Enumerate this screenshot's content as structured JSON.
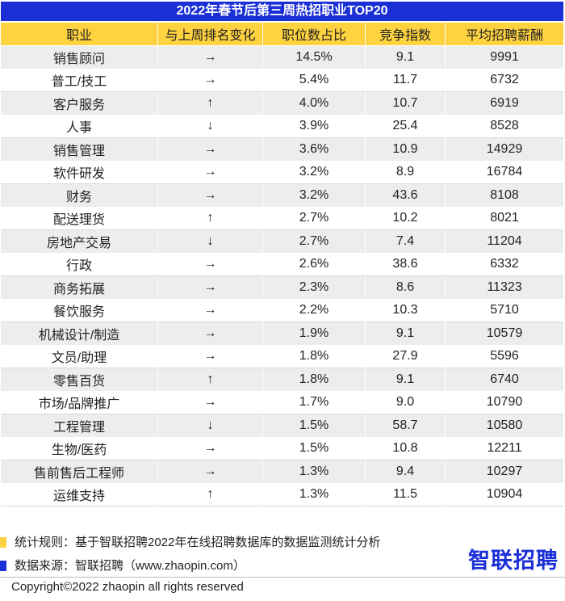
{
  "title": "2022年春节后第三周热招职业TOP20",
  "columns": [
    "职业",
    "与上周排名变化",
    "职位数占比",
    "竞争指数",
    "平均招聘薪酬"
  ],
  "rows": [
    {
      "job": "销售顾问",
      "change": "→",
      "share": "14.5%",
      "competition": "9.1",
      "salary": "9991"
    },
    {
      "job": "普工/技工",
      "change": "→",
      "share": "5.4%",
      "competition": "11.7",
      "salary": "6732"
    },
    {
      "job": "客户服务",
      "change": "↑",
      "share": "4.0%",
      "competition": "10.7",
      "salary": "6919"
    },
    {
      "job": "人事",
      "change": "↓",
      "share": "3.9%",
      "competition": "25.4",
      "salary": "8528"
    },
    {
      "job": "销售管理",
      "change": "→",
      "share": "3.6%",
      "competition": "10.9",
      "salary": "14929"
    },
    {
      "job": "软件研发",
      "change": "→",
      "share": "3.2%",
      "competition": "8.9",
      "salary": "16784"
    },
    {
      "job": "财务",
      "change": "→",
      "share": "3.2%",
      "competition": "43.6",
      "salary": "8108"
    },
    {
      "job": "配送理货",
      "change": "↑",
      "share": "2.7%",
      "competition": "10.2",
      "salary": "8021"
    },
    {
      "job": "房地产交易",
      "change": "↓",
      "share": "2.7%",
      "competition": "7.4",
      "salary": "11204"
    },
    {
      "job": "行政",
      "change": "→",
      "share": "2.6%",
      "competition": "38.6",
      "salary": "6332"
    },
    {
      "job": "商务拓展",
      "change": "→",
      "share": "2.3%",
      "competition": "8.6",
      "salary": "11323"
    },
    {
      "job": "餐饮服务",
      "change": "→",
      "share": "2.2%",
      "competition": "10.3",
      "salary": "5710"
    },
    {
      "job": "机械设计/制造",
      "change": "→",
      "share": "1.9%",
      "competition": "9.1",
      "salary": "10579"
    },
    {
      "job": "文员/助理",
      "change": "→",
      "share": "1.8%",
      "competition": "27.9",
      "salary": "5596"
    },
    {
      "job": "零售百货",
      "change": "↑",
      "share": "1.8%",
      "competition": "9.1",
      "salary": "6740"
    },
    {
      "job": "市场/品牌推广",
      "change": "→",
      "share": "1.7%",
      "competition": "9.0",
      "salary": "10790"
    },
    {
      "job": "工程管理",
      "change": "↓",
      "share": "1.5%",
      "competition": "58.7",
      "salary": "10580"
    },
    {
      "job": "生物/医药",
      "change": "→",
      "share": "1.5%",
      "competition": "10.8",
      "salary": "12211"
    },
    {
      "job": "售前售后工程师",
      "change": "→",
      "share": "1.3%",
      "competition": "9.4",
      "salary": "10297"
    },
    {
      "job": "运维支持",
      "change": "↑",
      "share": "1.3%",
      "competition": "11.5",
      "salary": "10904",
      "highlight": true
    }
  ],
  "legend": {
    "rule_label": "统计规则：基于智联招聘2022年在线招聘数据库的数据监测统计分析",
    "source_label": "数据来源：智联招聘（www.zhaopin.com）",
    "rule_color": "#ffd23f",
    "source_color": "#1a2fd6"
  },
  "logo_text": "智联招聘",
  "copyright": "Copyright©2022 zhaopin all rights reserved"
}
